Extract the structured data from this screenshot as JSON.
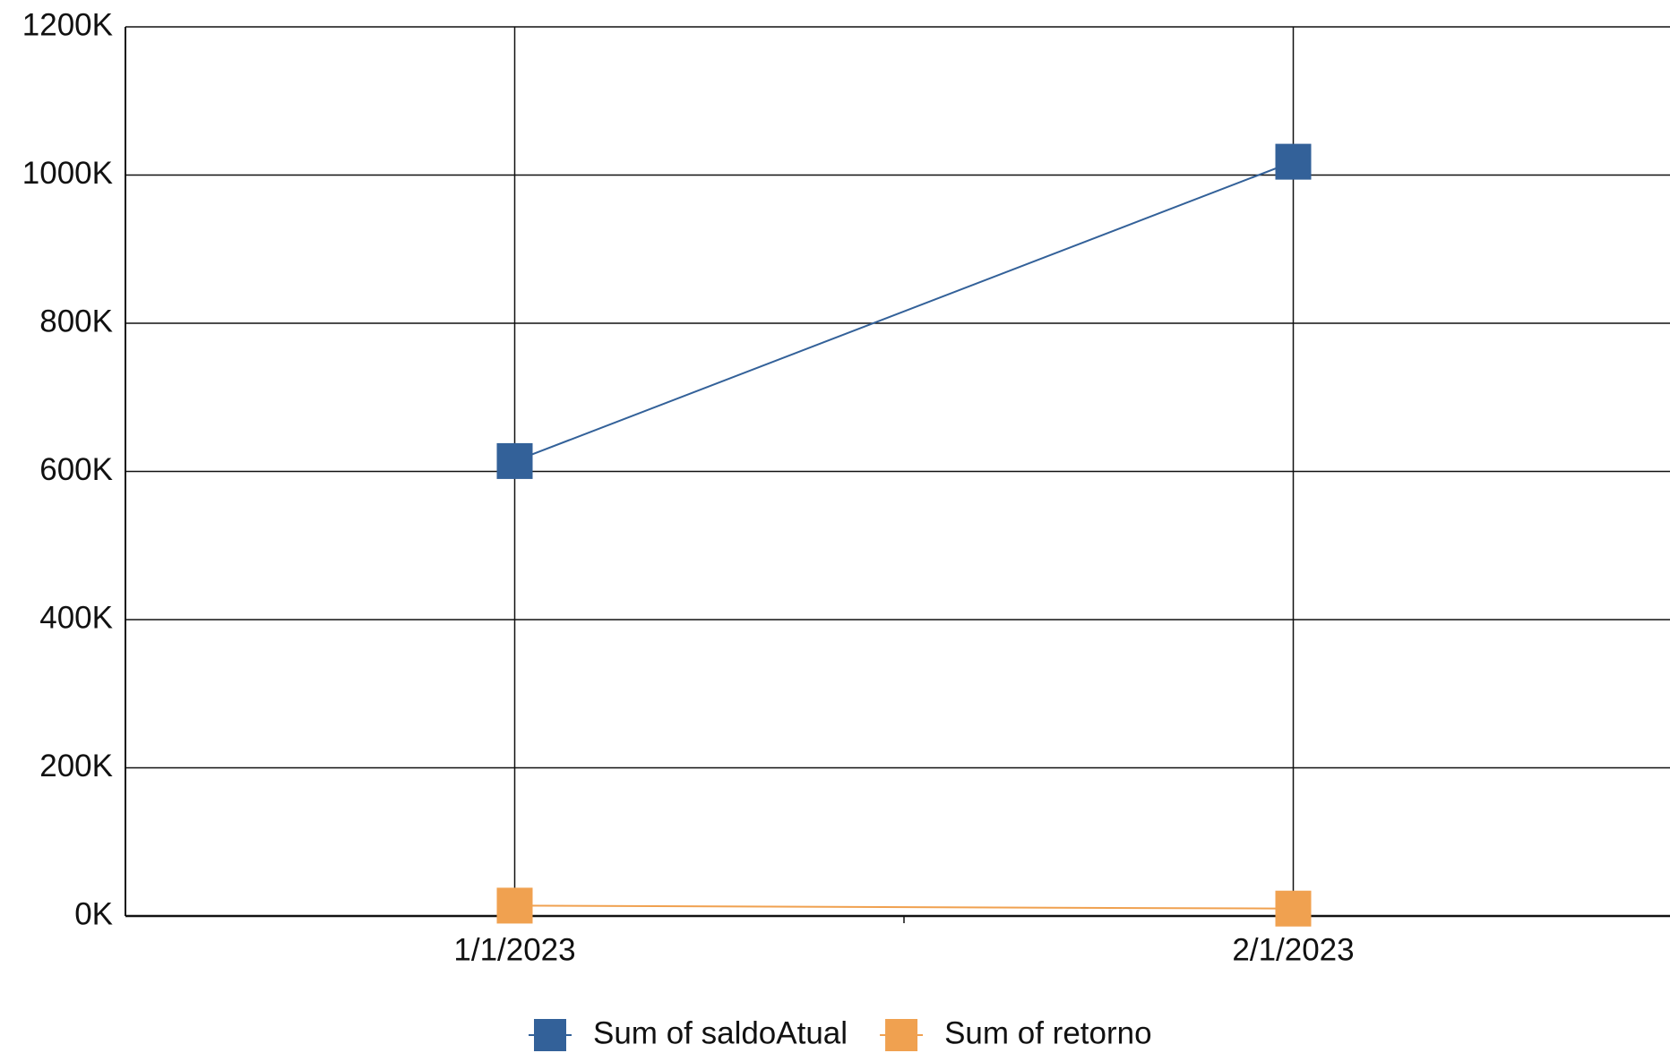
{
  "chart_data": {
    "type": "line",
    "categories": [
      "1/1/2023",
      "2/1/2023"
    ],
    "series": [
      {
        "name": "Sum of saldoAtual",
        "color": "#336199",
        "values": [
          614000,
          1018000
        ]
      },
      {
        "name": "Sum of retorno",
        "color": "#f0a150",
        "values": [
          14000,
          10000
        ]
      }
    ],
    "ylim": [
      0,
      1200000
    ],
    "yticks": [
      {
        "value": 0,
        "label": "0K"
      },
      {
        "value": 200000,
        "label": "200K"
      },
      {
        "value": 400000,
        "label": "400K"
      },
      {
        "value": 600000,
        "label": "600K"
      },
      {
        "value": 800000,
        "label": "800K"
      },
      {
        "value": 1000000,
        "label": "1000K"
      },
      {
        "value": 1200000,
        "label": "1200K"
      }
    ],
    "grid": true,
    "legend": "bottom"
  }
}
